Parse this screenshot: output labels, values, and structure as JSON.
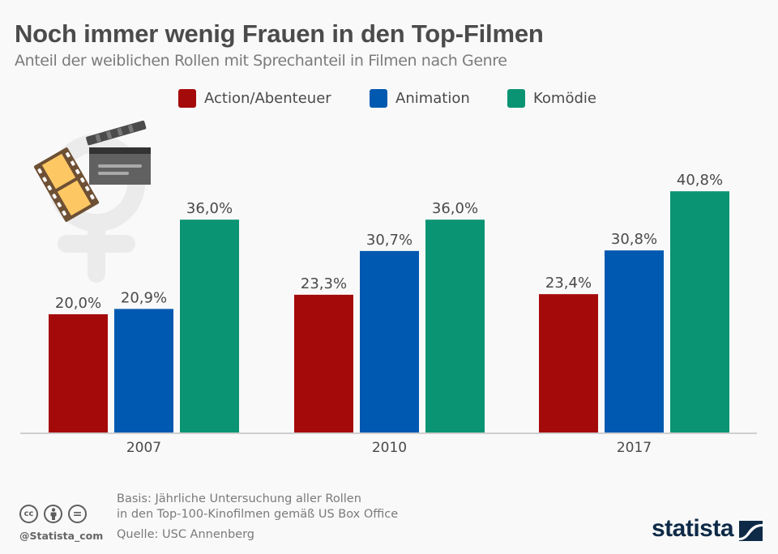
{
  "header": {
    "title": "Noch immer wenig Frauen in den Top-Filmen",
    "subtitle": "Anteil der weiblichen Rollen mit Sprechanteil in Filmen nach Genre"
  },
  "chart_data": {
    "type": "bar",
    "title": "Noch immer wenig Frauen in den Top-Filmen",
    "subtitle": "Anteil der weiblichen Rollen mit Sprechanteil in Filmen nach Genre",
    "xlabel": "",
    "ylabel": "",
    "categories": [
      "2007",
      "2010",
      "2017"
    ],
    "series": [
      {
        "name": "Action/Abenteuer",
        "color": "#a50a0b",
        "values": [
          20.0,
          23.3,
          23.4
        ],
        "labels": [
          "20,0%",
          "23,3%",
          "23,4%"
        ]
      },
      {
        "name": "Animation",
        "color": "#0059b0",
        "values": [
          20.9,
          30.7,
          30.8
        ],
        "labels": [
          "20,9%",
          "30,7%",
          "30,8%"
        ]
      },
      {
        "name": "Komödie",
        "color": "#0b9474",
        "values": [
          36.0,
          36.0,
          40.8
        ],
        "labels": [
          "36,0%",
          "36,0%",
          "40,8%"
        ]
      }
    ],
    "ylim": [
      0,
      45
    ],
    "grid": false,
    "legend_position": "top-center",
    "unit": "%"
  },
  "decoration": {
    "icons": [
      "female-symbol-icon",
      "film-strip-icon",
      "clapperboard-icon"
    ]
  },
  "footer": {
    "basis_line1": "Basis: Jährliche Untersuchung aller Rollen",
    "basis_line2": "in den Top-100-Kinofilmen gemäß US Box Office",
    "source": "Quelle: USC Annenberg",
    "handle": "@Statista_com",
    "cc_labels": [
      "cc",
      "by",
      "="
    ],
    "logo": "statista"
  }
}
